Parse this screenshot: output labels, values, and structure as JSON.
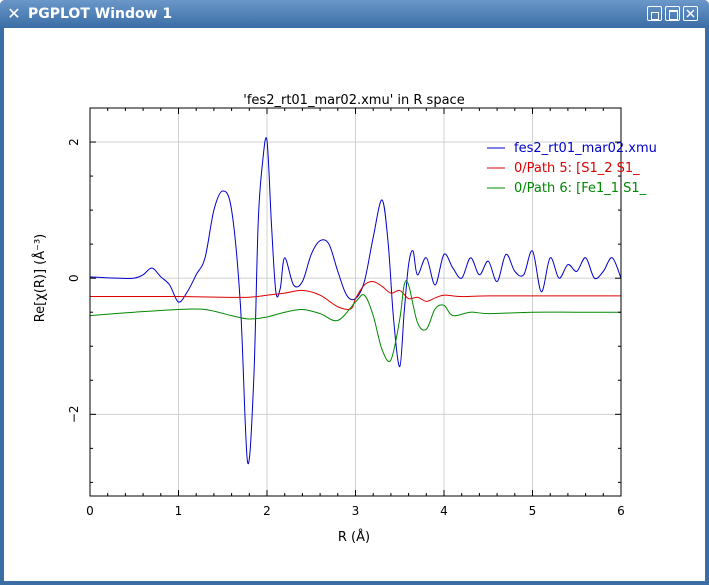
{
  "window": {
    "title": "PGPLOT Window 1",
    "icon": "app-icon",
    "buttons": [
      "restore-icon",
      "maximize-icon",
      "close-icon"
    ]
  },
  "chart_data": {
    "type": "line",
    "title": "'fes2_rt01_mar02.xmu' in R space",
    "xlabel": "R (Å)",
    "ylabel": "Re[χ(R)] (Å⁻³)",
    "xlim": [
      0,
      6
    ],
    "ylim": [
      -3.2,
      2.5
    ],
    "xticks": [
      0,
      1,
      2,
      3,
      4,
      5,
      6
    ],
    "yticks": [
      2,
      0,
      -2
    ],
    "grid": true,
    "legend_position": "top-right",
    "series": [
      {
        "name": "fes2_rt01_mar02.xmu",
        "color": "#0000cc",
        "x": [
          0,
          0.3,
          0.5,
          0.6,
          0.7,
          0.8,
          0.9,
          1.0,
          1.1,
          1.2,
          1.3,
          1.4,
          1.5,
          1.6,
          1.7,
          1.78,
          1.85,
          1.9,
          1.95,
          2.0,
          2.05,
          2.1,
          2.15,
          2.2,
          2.3,
          2.4,
          2.5,
          2.6,
          2.7,
          2.8,
          2.9,
          3.0,
          3.1,
          3.2,
          3.3,
          3.37,
          3.43,
          3.5,
          3.55,
          3.6,
          3.65,
          3.7,
          3.8,
          3.9,
          4.0,
          4.1,
          4.2,
          4.3,
          4.4,
          4.5,
          4.6,
          4.7,
          4.8,
          4.9,
          5.0,
          5.1,
          5.2,
          5.3,
          5.4,
          5.5,
          5.6,
          5.7,
          5.8,
          5.9,
          6.0
        ],
        "y": [
          0.02,
          0.0,
          0.0,
          0.05,
          0.15,
          0.02,
          -0.1,
          -0.35,
          -0.2,
          0.05,
          0.3,
          1.0,
          1.28,
          1.0,
          -0.4,
          -2.7,
          -1.5,
          0.8,
          1.7,
          2.02,
          0.8,
          -0.2,
          -0.15,
          0.3,
          -0.1,
          -0.05,
          0.35,
          0.55,
          0.5,
          0.1,
          -0.25,
          -0.3,
          -0.05,
          0.6,
          1.15,
          0.5,
          -0.6,
          -1.3,
          -0.5,
          0.2,
          0.4,
          0.05,
          0.3,
          -0.1,
          0.35,
          0.15,
          0.0,
          0.3,
          0.05,
          0.25,
          -0.05,
          0.35,
          0.1,
          0.05,
          0.4,
          -0.2,
          0.3,
          0.0,
          0.2,
          0.1,
          0.3,
          0.0,
          0.1,
          0.3,
          0.0
        ]
      },
      {
        "name": "0/Path 5: [S1_2  S1_",
        "color": "#dd0000",
        "x": [
          0,
          0.5,
          1.0,
          1.5,
          1.8,
          2.0,
          2.2,
          2.4,
          2.6,
          2.8,
          2.95,
          3.0,
          3.1,
          3.2,
          3.3,
          3.4,
          3.5,
          3.6,
          3.7,
          3.8,
          3.9,
          4.0,
          4.2,
          4.5,
          5.0,
          5.5,
          6.0
        ],
        "y": [
          -0.27,
          -0.27,
          -0.27,
          -0.28,
          -0.28,
          -0.25,
          -0.22,
          -0.18,
          -0.25,
          -0.42,
          -0.45,
          -0.3,
          -0.1,
          -0.05,
          -0.12,
          -0.22,
          -0.18,
          -0.3,
          -0.28,
          -0.34,
          -0.29,
          -0.25,
          -0.27,
          -0.26,
          -0.26,
          -0.26,
          -0.26
        ]
      },
      {
        "name": "0/Path 6: [Fe1_1  S1_",
        "color": "#008800",
        "x": [
          0,
          0.5,
          1.0,
          1.3,
          1.6,
          1.8,
          2.0,
          2.2,
          2.4,
          2.6,
          2.8,
          3.0,
          3.1,
          3.2,
          3.3,
          3.4,
          3.5,
          3.55,
          3.6,
          3.7,
          3.8,
          3.9,
          4.0,
          4.1,
          4.3,
          4.5,
          5.0,
          5.5,
          6.0
        ],
        "y": [
          -0.55,
          -0.5,
          -0.46,
          -0.46,
          -0.55,
          -0.6,
          -0.57,
          -0.5,
          -0.46,
          -0.52,
          -0.62,
          -0.35,
          -0.25,
          -0.55,
          -1.05,
          -1.2,
          -0.6,
          -0.1,
          -0.1,
          -0.65,
          -0.75,
          -0.45,
          -0.4,
          -0.55,
          -0.5,
          -0.52,
          -0.5,
          -0.5,
          -0.5
        ]
      }
    ]
  }
}
